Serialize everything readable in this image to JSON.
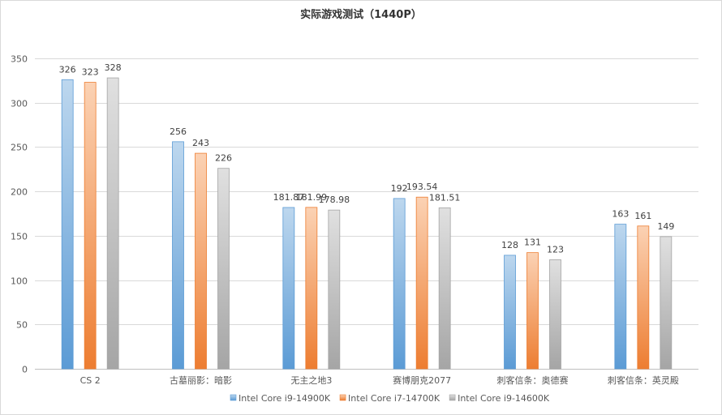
{
  "chart_data": {
    "type": "bar",
    "title": "实际游戏测试（1440P）",
    "categories": [
      "CS 2",
      "古墓丽影：暗影",
      "无主之地3",
      "赛博朋克2077",
      "刺客信条：奥德赛",
      "刺客信条：英灵殿"
    ],
    "series": [
      {
        "name": "Intel Core i9-14900K",
        "values": [
          326,
          256,
          181.87,
          192,
          128,
          163
        ],
        "labels": [
          "326",
          "256",
          "181.87",
          "192",
          "128",
          "163"
        ]
      },
      {
        "name": "Intel Core i7-14700K",
        "values": [
          323,
          243,
          181.99,
          193.54,
          131,
          161
        ],
        "labels": [
          "323",
          "243",
          "181.99",
          "193.54",
          "131",
          "161"
        ]
      },
      {
        "name": "Intel Core i9-14600K",
        "values": [
          328,
          226,
          178.98,
          181.51,
          123,
          149
        ],
        "labels": [
          "328",
          "226",
          "178.98",
          "181.51",
          "123",
          "149"
        ]
      }
    ],
    "ylim": [
      0,
      350
    ],
    "yticks": [
      0,
      50,
      100,
      150,
      200,
      250,
      300,
      350
    ],
    "grid": true,
    "legend": "bottom",
    "xlabel": "",
    "ylabel": ""
  },
  "colors": {
    "series": [
      {
        "light": "#bdd7ee",
        "dark": "#5b9bd5",
        "edge": "#5b9bd5"
      },
      {
        "light": "#fbd2b4",
        "dark": "#ed7d31",
        "edge": "#ed7d31"
      },
      {
        "light": "#e0e0e0",
        "dark": "#a5a5a5",
        "edge": "#a5a5a5"
      }
    ]
  }
}
